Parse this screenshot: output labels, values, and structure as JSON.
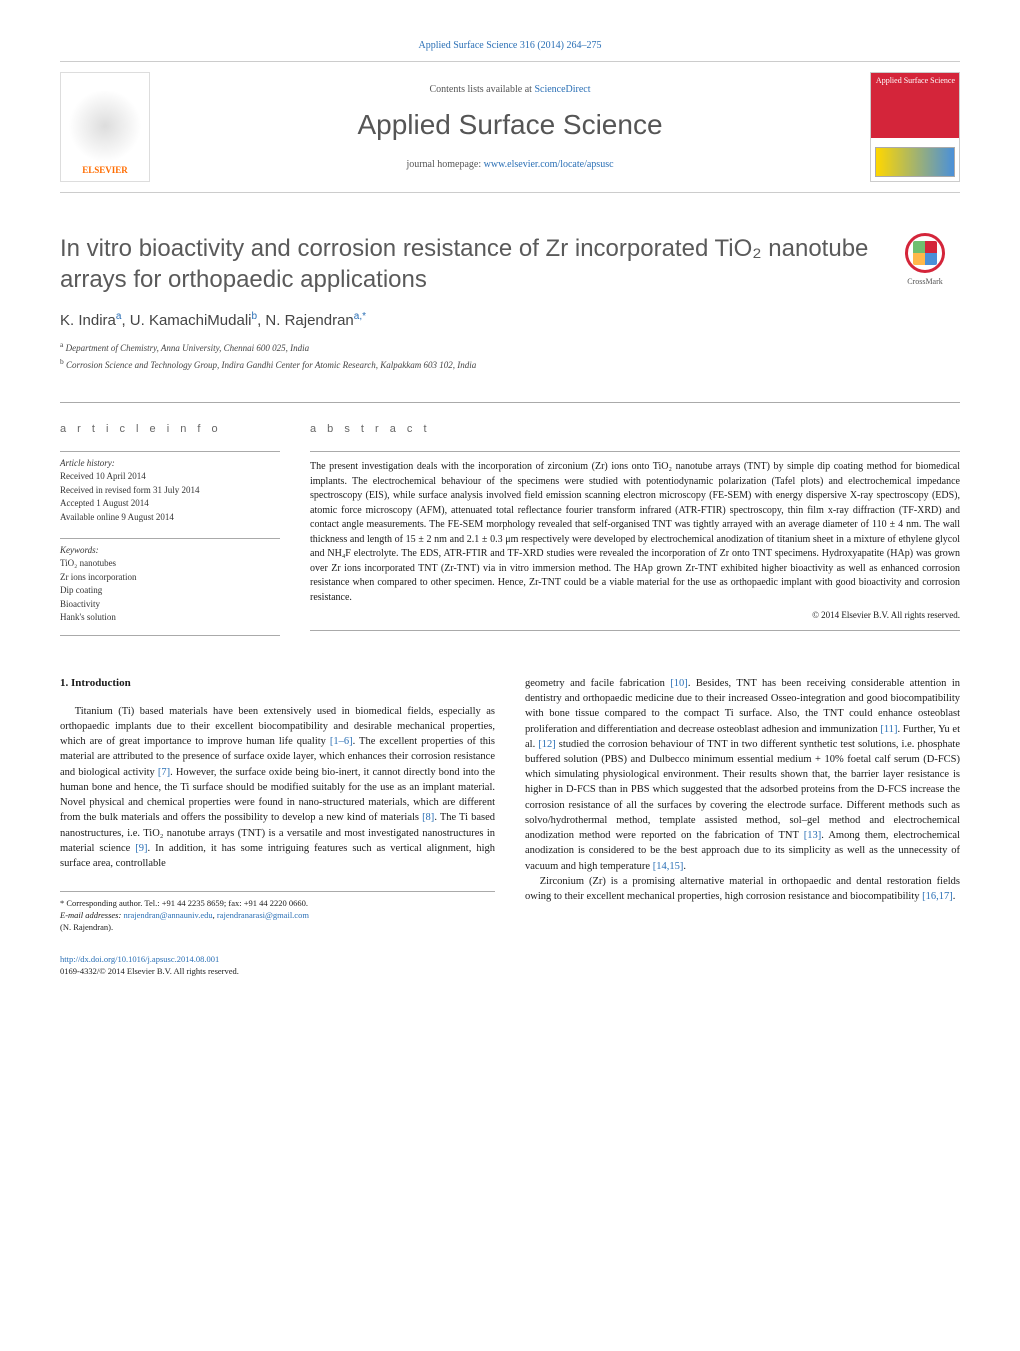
{
  "colors": {
    "link": "#2a6fb5",
    "publisher_accent": "#ff6c00",
    "cover_red": "#d4253a",
    "text_gray": "#5a5a5a"
  },
  "fonts": {
    "body_family": "Georgia, Times New Roman, serif",
    "heading_family": "Arial, sans-serif",
    "body_size_pt": 10.5,
    "title_size_pt": 24,
    "journal_title_size_pt": 28,
    "abstract_size_pt": 10,
    "info_size_pt": 9
  },
  "journal": {
    "header_citation": "Applied Surface Science 316 (2014) 264–275",
    "contents_prefix": "Contents lists available at ",
    "contents_link": "ScienceDirect",
    "title": "Applied Surface Science",
    "homepage_prefix": "journal homepage: ",
    "homepage_link": "www.elsevier.com/locate/apsusc",
    "publisher_logo_text": "ELSEVIER",
    "cover_label": "Applied Surface Science"
  },
  "crossmark": {
    "label": "CrossMark"
  },
  "article": {
    "title": "In vitro bioactivity and corrosion resistance of Zr incorporated TiO₂ nanotube arrays for orthopaedic applications",
    "authors_html": "K. Indira<sup>a</sup>, U. KamachiMudali<sup>b</sup>, N. Rajendran<sup>a,*</sup>",
    "affiliations": [
      {
        "label": "a",
        "text": "Department of Chemistry, Anna University, Chennai 600 025, India"
      },
      {
        "label": "b",
        "text": "Corrosion Science and Technology Group, Indira Gandhi Center for Atomic Research, Kalpakkam 603 102, India"
      }
    ]
  },
  "info": {
    "heading": "a r t i c l e   i n f o",
    "history_label": "Article history:",
    "history": [
      "Received 10 April 2014",
      "Received in revised form 31 July 2014",
      "Accepted 1 August 2014",
      "Available online 9 August 2014"
    ],
    "keywords_label": "Keywords:",
    "keywords": [
      "TiO₂ nanotubes",
      "Zr ions incorporation",
      "Dip coating",
      "Bioactivity",
      "Hank's solution"
    ]
  },
  "abstract": {
    "heading": "a b s t r a c t",
    "text": "The present investigation deals with the incorporation of zirconium (Zr) ions onto TiO₂ nanotube arrays (TNT) by simple dip coating method for biomedical implants. The electrochemical behaviour of the specimens were studied with potentiodynamic polarization (Tafel plots) and electrochemical impedance spectroscopy (EIS), while surface analysis involved field emission scanning electron microscopy (FE-SEM) with energy dispersive X-ray spectroscopy (EDS), atomic force microscopy (AFM), attenuated total reflectance fourier transform infrared (ATR-FTIR) spectroscopy, thin film x-ray diffraction (TF-XRD) and contact angle measurements. The FE-SEM morphology revealed that self-organised TNT was tightly arrayed with an average diameter of 110 ± 4 nm. The wall thickness and length of 15 ± 2 nm and 2.1 ± 0.3 μm respectively were developed by electrochemical anodization of titanium sheet in a mixture of ethylene glycol and NH₄F electrolyte. The EDS, ATR-FTIR and TF-XRD studies were revealed the incorporation of Zr onto TNT specimens. Hydroxyapatite (HAp) was grown over Zr ions incorporated TNT (Zr-TNT) via in vitro immersion method. The HAp grown Zr-TNT exhibited higher bioactivity as well as enhanced corrosion resistance when compared to other specimen. Hence, Zr-TNT could be a viable material for the use as orthopaedic implant with good bioactivity and corrosion resistance.",
    "copyright": "© 2014 Elsevier B.V. All rights reserved."
  },
  "body": {
    "section_heading": "1. Introduction",
    "col1_p1": "Titanium (Ti) based materials have been extensively used in biomedical fields, especially as orthopaedic implants due to their excellent biocompatibility and desirable mechanical properties, which are of great importance to improve human life quality [1–6]. The excellent properties of this material are attributed to the presence of surface oxide layer, which enhances their corrosion resistance and biological activity [7]. However, the surface oxide being bio-inert, it cannot directly bond into the human bone and hence, the Ti surface should be modified suitably for the use as an implant material. Novel physical and chemical properties were found in nano-structured materials, which are different from the bulk materials and offers the possibility to develop a new kind of materials [8]. The Ti based nanostructures, i.e. TiO₂ nanotube arrays (TNT) is a versatile and most investigated nanostructures in material science [9]. In addition, it has some intriguing features such as vertical alignment, high surface area, controllable",
    "col2_p1": "geometry and facile fabrication [10]. Besides, TNT has been receiving considerable attention in dentistry and orthopaedic medicine due to their increased Osseo-integration and good biocompatibility with bone tissue compared to the compact Ti surface. Also, the TNT could enhance osteoblast proliferation and differentiation and decrease osteoblast adhesion and immunization [11]. Further, Yu et al. [12] studied the corrosion behaviour of TNT in two different synthetic test solutions, i.e. phosphate buffered solution (PBS) and Dulbecco minimum essential medium + 10% foetal calf serum (D-FCS) which simulating physiological environment. Their results shown that, the barrier layer resistance is higher in D-FCS than in PBS which suggested that the adsorbed proteins from the D-FCS increase the corrosion resistance of all the surfaces by covering the electrode surface. Different methods such as solvo/hydrothermal method, template assisted method, sol–gel method and electrochemical anodization method were reported on the fabrication of TNT [13]. Among them, electrochemical anodization is considered to be the best approach due to its simplicity as well as the unnecessity of vacuum and high temperature [14,15].",
    "col2_p2": "Zirconium (Zr) is a promising alternative material in orthopaedic and dental restoration fields owing to their excellent mechanical properties, high corrosion resistance and biocompatibility [16,17].",
    "ref_spans": {
      "r1_6": "[1–6]",
      "r7": "[7]",
      "r8": "[8]",
      "r9": "[9]",
      "r10": "[10]",
      "r11": "[11]",
      "r12": "[12]",
      "r13": "[13]",
      "r14_15": "[14,15]",
      "r16_17": "[16,17]"
    }
  },
  "footnote": {
    "corresponding": "* Corresponding author. Tel.: +91 44 2235 8659; fax: +91 44 2220 0660.",
    "email_label": "E-mail addresses: ",
    "email1": "nrajendran@annauniv.edu",
    "email2": "rajendranarasi@gmail.com",
    "author_tail": "(N. Rajendran)."
  },
  "footer": {
    "doi": "http://dx.doi.org/10.1016/j.apsusc.2014.08.001",
    "issn_line": "0169-4332/© 2014 Elsevier B.V. All rights reserved."
  }
}
